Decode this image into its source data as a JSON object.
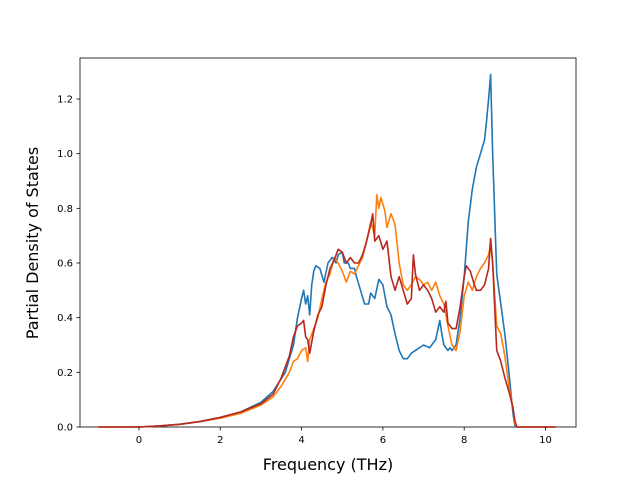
{
  "chart_data": {
    "type": "line",
    "xlabel": "Frequency (THz)",
    "ylabel": "Partial Density of States",
    "xlim": [
      -1.45,
      10.75
    ],
    "ylim": [
      0.0,
      1.35
    ],
    "xticks": [
      "0",
      "2",
      "4",
      "6",
      "8",
      "10"
    ],
    "xtick_values": [
      0,
      2,
      4,
      6,
      8,
      10
    ],
    "yticks": [
      "0.0",
      "0.2",
      "0.4",
      "0.6",
      "0.8",
      "1.0",
      "1.2"
    ],
    "ytick_values": [
      0.0,
      0.2,
      0.4,
      0.6,
      0.8,
      1.0,
      1.2
    ],
    "grid": false,
    "series": [
      {
        "color": "#1f77b4",
        "points": [
          [
            -1.0,
            0.0
          ],
          [
            -0.5,
            0.0
          ],
          [
            0.0,
            0.0
          ],
          [
            0.5,
            0.004
          ],
          [
            1.0,
            0.01
          ],
          [
            1.5,
            0.02
          ],
          [
            2.0,
            0.035
          ],
          [
            2.5,
            0.055
          ],
          [
            3.0,
            0.09
          ],
          [
            3.3,
            0.13
          ],
          [
            3.6,
            0.2
          ],
          [
            3.8,
            0.3
          ],
          [
            3.9,
            0.4
          ],
          [
            4.0,
            0.47
          ],
          [
            4.05,
            0.5
          ],
          [
            4.1,
            0.45
          ],
          [
            4.15,
            0.48
          ],
          [
            4.2,
            0.41
          ],
          [
            4.25,
            0.52
          ],
          [
            4.3,
            0.57
          ],
          [
            4.35,
            0.59
          ],
          [
            4.45,
            0.58
          ],
          [
            4.55,
            0.53
          ],
          [
            4.65,
            0.6
          ],
          [
            4.75,
            0.62
          ],
          [
            4.85,
            0.6
          ],
          [
            4.9,
            0.63
          ],
          [
            5.0,
            0.64
          ],
          [
            5.05,
            0.6
          ],
          [
            5.15,
            0.6
          ],
          [
            5.2,
            0.58
          ],
          [
            5.3,
            0.58
          ],
          [
            5.35,
            0.55
          ],
          [
            5.45,
            0.5
          ],
          [
            5.55,
            0.45
          ],
          [
            5.65,
            0.45
          ],
          [
            5.7,
            0.49
          ],
          [
            5.8,
            0.47
          ],
          [
            5.9,
            0.54
          ],
          [
            6.0,
            0.52
          ],
          [
            6.1,
            0.44
          ],
          [
            6.2,
            0.41
          ],
          [
            6.3,
            0.34
          ],
          [
            6.4,
            0.28
          ],
          [
            6.5,
            0.25
          ],
          [
            6.6,
            0.25
          ],
          [
            6.7,
            0.27
          ],
          [
            6.8,
            0.28
          ],
          [
            7.0,
            0.3
          ],
          [
            7.15,
            0.29
          ],
          [
            7.3,
            0.32
          ],
          [
            7.4,
            0.39
          ],
          [
            7.45,
            0.34
          ],
          [
            7.5,
            0.3
          ],
          [
            7.6,
            0.28
          ],
          [
            7.65,
            0.29
          ],
          [
            7.7,
            0.28
          ],
          [
            7.8,
            0.3
          ],
          [
            7.9,
            0.4
          ],
          [
            8.0,
            0.55
          ],
          [
            8.1,
            0.75
          ],
          [
            8.2,
            0.87
          ],
          [
            8.3,
            0.95
          ],
          [
            8.4,
            1.0
          ],
          [
            8.5,
            1.05
          ],
          [
            8.55,
            1.12
          ],
          [
            8.6,
            1.2
          ],
          [
            8.65,
            1.29
          ],
          [
            8.7,
            1.0
          ],
          [
            8.8,
            0.56
          ],
          [
            8.9,
            0.45
          ],
          [
            9.0,
            0.34
          ],
          [
            9.1,
            0.2
          ],
          [
            9.2,
            0.05
          ],
          [
            9.25,
            0.0
          ],
          [
            9.5,
            0.0
          ],
          [
            10.0,
            0.0
          ],
          [
            10.25,
            0.0
          ]
        ]
      },
      {
        "color": "#ff7f0e",
        "points": [
          [
            -1.0,
            0.0
          ],
          [
            -0.5,
            0.0
          ],
          [
            0.0,
            0.0
          ],
          [
            0.5,
            0.004
          ],
          [
            1.0,
            0.01
          ],
          [
            1.5,
            0.02
          ],
          [
            2.0,
            0.032
          ],
          [
            2.5,
            0.05
          ],
          [
            3.0,
            0.08
          ],
          [
            3.3,
            0.11
          ],
          [
            3.5,
            0.15
          ],
          [
            3.7,
            0.2
          ],
          [
            3.8,
            0.24
          ],
          [
            3.9,
            0.25
          ],
          [
            4.0,
            0.28
          ],
          [
            4.1,
            0.29
          ],
          [
            4.15,
            0.24
          ],
          [
            4.2,
            0.32
          ],
          [
            4.3,
            0.36
          ],
          [
            4.4,
            0.4
          ],
          [
            4.5,
            0.47
          ],
          [
            4.6,
            0.53
          ],
          [
            4.7,
            0.56
          ],
          [
            4.8,
            0.62
          ],
          [
            4.9,
            0.6
          ],
          [
            5.0,
            0.57
          ],
          [
            5.1,
            0.53
          ],
          [
            5.2,
            0.57
          ],
          [
            5.3,
            0.56
          ],
          [
            5.4,
            0.59
          ],
          [
            5.5,
            0.62
          ],
          [
            5.6,
            0.68
          ],
          [
            5.7,
            0.75
          ],
          [
            5.8,
            0.7
          ],
          [
            5.85,
            0.85
          ],
          [
            5.9,
            0.8
          ],
          [
            5.95,
            0.84
          ],
          [
            6.05,
            0.79
          ],
          [
            6.1,
            0.73
          ],
          [
            6.2,
            0.78
          ],
          [
            6.3,
            0.74
          ],
          [
            6.4,
            0.6
          ],
          [
            6.5,
            0.52
          ],
          [
            6.6,
            0.5
          ],
          [
            6.7,
            0.52
          ],
          [
            6.8,
            0.55
          ],
          [
            6.9,
            0.54
          ],
          [
            7.0,
            0.52
          ],
          [
            7.1,
            0.53
          ],
          [
            7.2,
            0.5
          ],
          [
            7.3,
            0.53
          ],
          [
            7.4,
            0.48
          ],
          [
            7.5,
            0.45
          ],
          [
            7.6,
            0.37
          ],
          [
            7.7,
            0.3
          ],
          [
            7.8,
            0.28
          ],
          [
            7.9,
            0.35
          ],
          [
            8.0,
            0.48
          ],
          [
            8.1,
            0.53
          ],
          [
            8.2,
            0.5
          ],
          [
            8.3,
            0.55
          ],
          [
            8.4,
            0.58
          ],
          [
            8.5,
            0.6
          ],
          [
            8.6,
            0.63
          ],
          [
            8.65,
            0.67
          ],
          [
            8.7,
            0.6
          ],
          [
            8.8,
            0.37
          ],
          [
            8.9,
            0.34
          ],
          [
            9.0,
            0.26
          ],
          [
            9.1,
            0.15
          ],
          [
            9.2,
            0.07
          ],
          [
            9.25,
            0.01
          ],
          [
            9.3,
            0.0
          ],
          [
            9.5,
            0.0
          ],
          [
            10.0,
            0.0
          ],
          [
            10.25,
            0.0
          ]
        ]
      },
      {
        "color": "#b5281f",
        "points": [
          [
            -1.0,
            0.0
          ],
          [
            -0.5,
            0.0
          ],
          [
            0.0,
            0.0
          ],
          [
            0.5,
            0.004
          ],
          [
            1.0,
            0.01
          ],
          [
            1.5,
            0.02
          ],
          [
            2.0,
            0.035
          ],
          [
            2.5,
            0.055
          ],
          [
            3.0,
            0.085
          ],
          [
            3.3,
            0.12
          ],
          [
            3.5,
            0.18
          ],
          [
            3.7,
            0.26
          ],
          [
            3.8,
            0.33
          ],
          [
            3.9,
            0.37
          ],
          [
            4.0,
            0.38
          ],
          [
            4.05,
            0.39
          ],
          [
            4.1,
            0.33
          ],
          [
            4.15,
            0.32
          ],
          [
            4.2,
            0.27
          ],
          [
            4.3,
            0.35
          ],
          [
            4.4,
            0.41
          ],
          [
            4.5,
            0.44
          ],
          [
            4.6,
            0.52
          ],
          [
            4.7,
            0.58
          ],
          [
            4.8,
            0.61
          ],
          [
            4.9,
            0.65
          ],
          [
            5.0,
            0.64
          ],
          [
            5.1,
            0.6
          ],
          [
            5.2,
            0.62
          ],
          [
            5.3,
            0.6
          ],
          [
            5.4,
            0.6
          ],
          [
            5.5,
            0.63
          ],
          [
            5.6,
            0.68
          ],
          [
            5.7,
            0.74
          ],
          [
            5.75,
            0.78
          ],
          [
            5.8,
            0.68
          ],
          [
            5.9,
            0.7
          ],
          [
            6.0,
            0.65
          ],
          [
            6.1,
            0.68
          ],
          [
            6.2,
            0.55
          ],
          [
            6.3,
            0.5
          ],
          [
            6.4,
            0.55
          ],
          [
            6.5,
            0.5
          ],
          [
            6.6,
            0.45
          ],
          [
            6.7,
            0.47
          ],
          [
            6.75,
            0.63
          ],
          [
            6.8,
            0.56
          ],
          [
            6.9,
            0.5
          ],
          [
            7.0,
            0.52
          ],
          [
            7.1,
            0.5
          ],
          [
            7.2,
            0.47
          ],
          [
            7.3,
            0.42
          ],
          [
            7.4,
            0.44
          ],
          [
            7.5,
            0.42
          ],
          [
            7.55,
            0.46
          ],
          [
            7.6,
            0.38
          ],
          [
            7.7,
            0.36
          ],
          [
            7.8,
            0.36
          ],
          [
            7.9,
            0.44
          ],
          [
            8.0,
            0.55
          ],
          [
            8.05,
            0.59
          ],
          [
            8.15,
            0.57
          ],
          [
            8.25,
            0.52
          ],
          [
            8.3,
            0.5
          ],
          [
            8.4,
            0.5
          ],
          [
            8.5,
            0.52
          ],
          [
            8.6,
            0.58
          ],
          [
            8.65,
            0.69
          ],
          [
            8.7,
            0.6
          ],
          [
            8.8,
            0.28
          ],
          [
            8.9,
            0.24
          ],
          [
            9.0,
            0.18
          ],
          [
            9.1,
            0.13
          ],
          [
            9.2,
            0.07
          ],
          [
            9.25,
            0.02
          ],
          [
            9.3,
            0.0
          ],
          [
            9.5,
            0.0
          ],
          [
            10.0,
            0.0
          ],
          [
            10.25,
            0.0
          ]
        ]
      }
    ]
  }
}
